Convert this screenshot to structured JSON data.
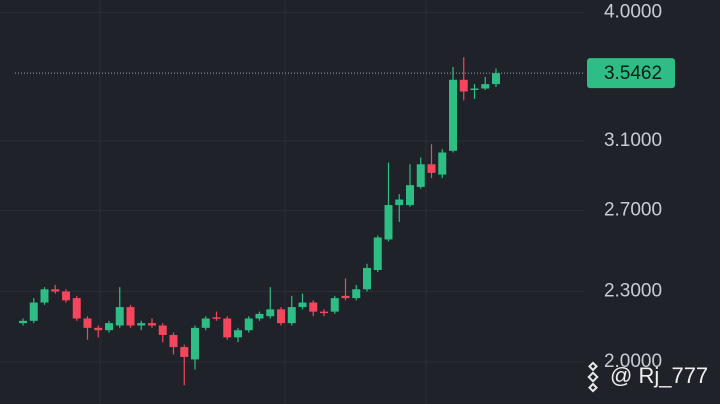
{
  "chart_data": {
    "type": "candlestick",
    "log_scale": true,
    "grid": true,
    "up_color": "#2ebd85",
    "down_color": "#f6465d",
    "ylim": [
      1.84,
      4.1
    ],
    "yticks": [
      {
        "value": 2,
        "label": "2.0000"
      },
      {
        "value": 2.3,
        "label": "2.3000"
      },
      {
        "value": 2.7,
        "label": "2.7000"
      },
      {
        "value": 3.1,
        "label": "3.1000"
      },
      {
        "value": 4,
        "label": "4.0000"
      }
    ],
    "last_price": 3.5462,
    "watermark": "@ Rj_777",
    "open": [
      2.16,
      2.17,
      2.25,
      2.31,
      2.3,
      2.27,
      2.18,
      2.14,
      2.13,
      2.15,
      2.23,
      2.15,
      2.16,
      2.15,
      2.11,
      2.06,
      2.01,
      2.14,
      2.185,
      2.18,
      2.1,
      2.13,
      2.18,
      2.19,
      2.22,
      2.16,
      2.23,
      2.25,
      2.21,
      2.21,
      2.28,
      2.27,
      2.31,
      2.4,
      2.55,
      2.73,
      2.73,
      2.83,
      2.96,
      2.9,
      3.04,
      3.5,
      3.43,
      3.44,
      3.47
    ],
    "high": [
      2.18,
      2.27,
      2.32,
      2.33,
      2.31,
      2.28,
      2.19,
      2.15,
      2.17,
      2.32,
      2.24,
      2.17,
      2.18,
      2.16,
      2.12,
      2.07,
      2.15,
      2.19,
      2.21,
      2.19,
      2.14,
      2.19,
      2.21,
      2.32,
      2.23,
      2.28,
      2.29,
      2.26,
      2.22,
      2.28,
      2.36,
      2.33,
      2.43,
      2.57,
      2.97,
      2.79,
      2.96,
      3.0,
      3.08,
      3.05,
      3.59,
      3.66,
      3.47,
      3.52,
      3.58
    ],
    "low": [
      2.15,
      2.16,
      2.24,
      2.29,
      2.25,
      2.17,
      2.09,
      2.1,
      2.12,
      2.14,
      2.14,
      2.13,
      2.14,
      2.08,
      2.03,
      1.91,
      1.97,
      2.13,
      2.17,
      2.09,
      2.08,
      2.12,
      2.17,
      2.18,
      2.15,
      2.15,
      2.22,
      2.19,
      2.19,
      2.2,
      2.26,
      2.26,
      2.3,
      2.39,
      2.54,
      2.64,
      2.72,
      2.82,
      2.88,
      2.88,
      3.03,
      3.36,
      3.37,
      3.43,
      3.45
    ],
    "close": [
      2.17,
      2.25,
      2.31,
      2.3,
      2.26,
      2.18,
      2.14,
      2.13,
      2.16,
      2.23,
      2.15,
      2.16,
      2.15,
      2.11,
      2.06,
      2.02,
      2.14,
      2.18,
      2.18,
      2.1,
      2.13,
      2.18,
      2.2,
      2.22,
      2.16,
      2.23,
      2.25,
      2.21,
      2.205,
      2.27,
      2.27,
      2.31,
      2.41,
      2.56,
      2.73,
      2.76,
      2.84,
      2.96,
      2.91,
      3.03,
      3.5,
      3.42,
      3.44,
      3.47,
      3.5462
    ]
  }
}
